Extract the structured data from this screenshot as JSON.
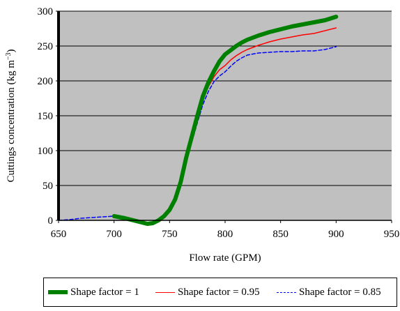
{
  "chart_data": {
    "type": "line",
    "xlabel": "Flow rate (GPM)",
    "ylabel": "Cuttings concentration (kg m",
    "ylabel_exponent": "−3",
    "ylabel_close": ")",
    "xlim": [
      650,
      950
    ],
    "ylim": [
      0,
      300
    ],
    "x_ticks": [
      "650",
      "700",
      "750",
      "800",
      "850",
      "900",
      "950"
    ],
    "y_ticks": [
      "0",
      "50",
      "100",
      "150",
      "200",
      "250",
      "300"
    ],
    "grid": "horizontal",
    "plot_background": "#c0c0c0",
    "legend_position": "bottom",
    "series": [
      {
        "name": "Shape factor = 1",
        "color": "#008000",
        "style": "thick",
        "x": [
          700,
          710,
          720,
          725,
          730,
          735,
          740,
          745,
          750,
          755,
          760,
          765,
          770,
          775,
          780,
          785,
          790,
          795,
          800,
          805,
          810,
          815,
          820,
          830,
          840,
          850,
          860,
          870,
          880,
          890,
          900
        ],
        "y": [
          6,
          3,
          -1,
          -3,
          -5,
          -4,
          0,
          6,
          15,
          30,
          55,
          90,
          120,
          150,
          178,
          198,
          214,
          228,
          238,
          244,
          250,
          255,
          259,
          265,
          270,
          274,
          278,
          281,
          284,
          287,
          292
        ]
      },
      {
        "name": "Shape factor = 0.95",
        "color": "#ff0000",
        "style": "solid",
        "x": [
          700,
          710,
          720,
          725,
          730,
          735,
          740,
          745,
          750,
          755,
          760,
          765,
          770,
          775,
          780,
          785,
          790,
          795,
          800,
          805,
          810,
          815,
          820,
          830,
          840,
          850,
          860,
          870,
          880,
          890,
          900
        ],
        "y": [
          6,
          3,
          -1,
          -3,
          -5,
          -4,
          0,
          6,
          14,
          28,
          52,
          86,
          116,
          145,
          172,
          192,
          206,
          216,
          222,
          230,
          236,
          241,
          245,
          251,
          256,
          260,
          263,
          266,
          268,
          272,
          276
        ]
      },
      {
        "name": "Shape factor = 0.85",
        "color": "#0000ff",
        "style": "dashed",
        "x": [
          650,
          660,
          670,
          680,
          690,
          700,
          710,
          720,
          725,
          730,
          735,
          740,
          745,
          750,
          755,
          760,
          765,
          770,
          775,
          780,
          785,
          790,
          795,
          800,
          805,
          810,
          815,
          820,
          830,
          840,
          850,
          860,
          870,
          880,
          890,
          900
        ],
        "y": [
          0,
          1,
          3,
          4,
          5,
          6,
          3,
          -1,
          -3,
          -5,
          -4,
          0,
          6,
          13,
          27,
          50,
          83,
          112,
          140,
          166,
          185,
          199,
          207,
          213,
          221,
          228,
          233,
          237,
          240,
          241,
          242,
          242,
          243,
          243,
          245,
          249
        ]
      }
    ]
  }
}
